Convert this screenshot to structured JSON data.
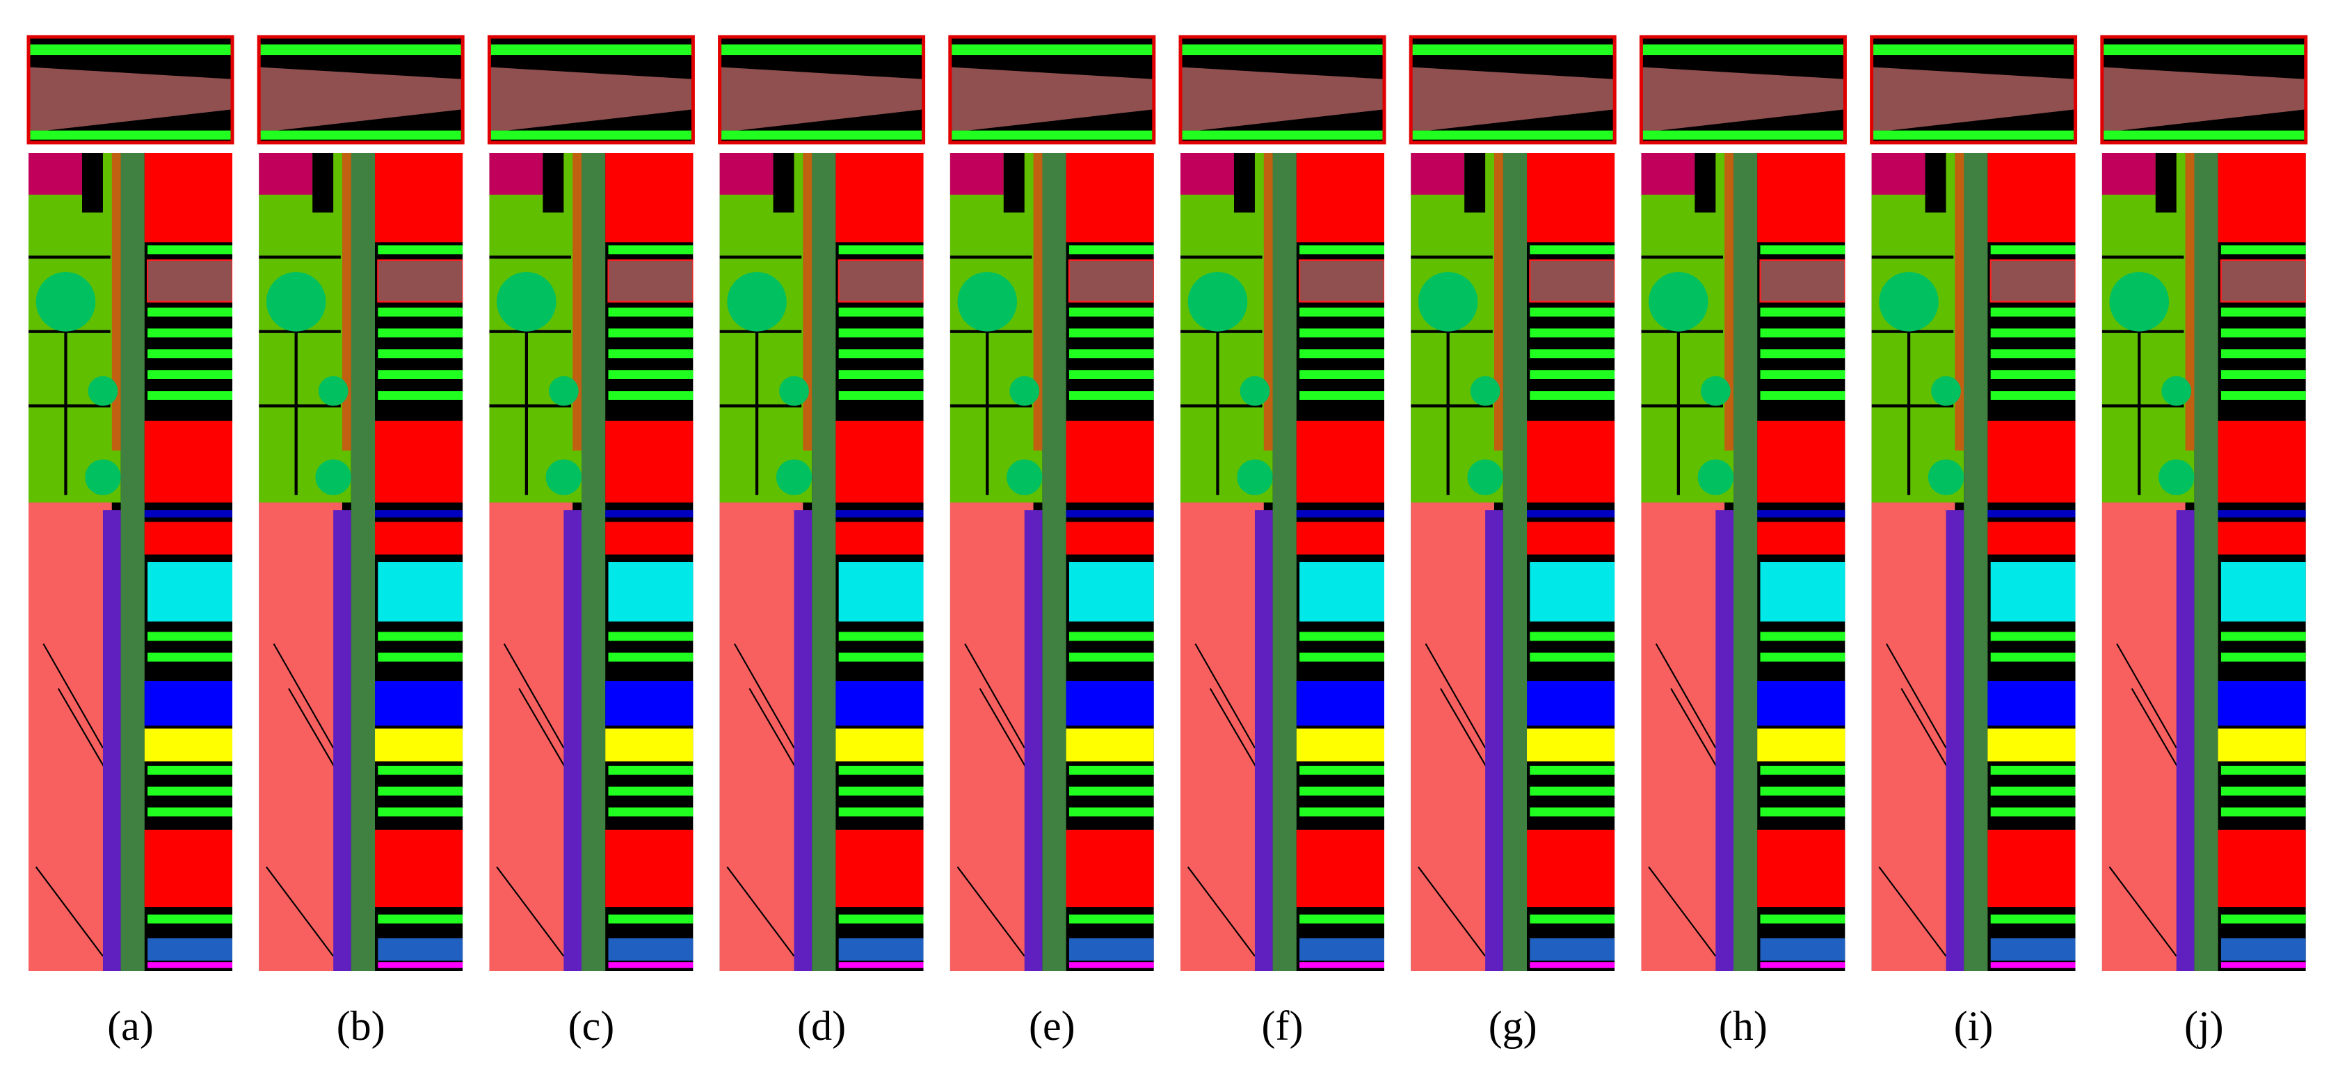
{
  "captions": [
    "(a)",
    "(b)",
    "(c)",
    "(d)",
    "(e)",
    "(f)",
    "(g)",
    "(h)",
    "(i)",
    "(j)"
  ]
}
